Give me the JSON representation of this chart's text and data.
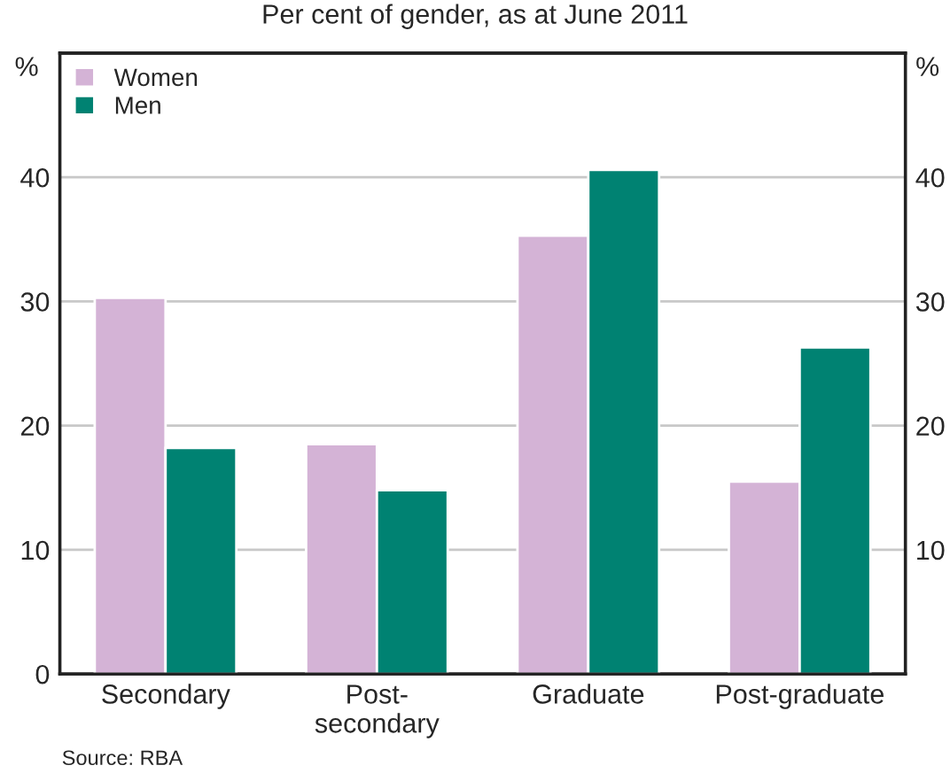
{
  "chart_data": {
    "type": "bar",
    "title": "Per cent of gender, as at June 2011",
    "categories": [
      "Secondary",
      "Post-\nsecondary",
      "Graduate",
      "Post-graduate"
    ],
    "series": [
      {
        "name": "Women",
        "color": "#d4b3d6",
        "values": [
          30.3,
          18.5,
          35.3,
          15.5
        ]
      },
      {
        "name": "Men",
        "color": "#008272",
        "values": [
          18.2,
          14.8,
          40.6,
          26.3
        ]
      }
    ],
    "ylabel": "%",
    "y2label": "%",
    "ylim": [
      0,
      50
    ],
    "yticks": [
      0,
      10,
      20,
      30,
      40
    ],
    "y2lim": [
      0,
      50
    ],
    "y2ticks": [
      10,
      20,
      30,
      40
    ],
    "grid": "y",
    "legend": "top left",
    "annotations": [
      "Source: RBA"
    ]
  }
}
